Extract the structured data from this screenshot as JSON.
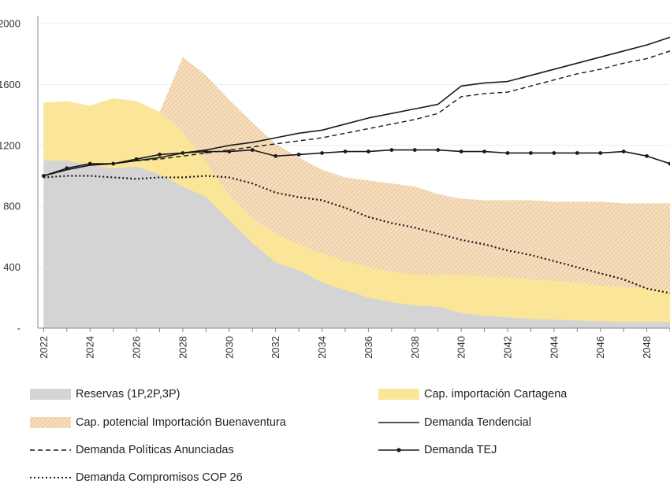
{
  "chart_data": {
    "type": "area",
    "title": "",
    "xlabel": "",
    "ylabel": "",
    "x": [
      2022,
      2023,
      2024,
      2025,
      2026,
      2027,
      2028,
      2029,
      2030,
      2031,
      2032,
      2033,
      2034,
      2035,
      2036,
      2037,
      2038,
      2039,
      2040,
      2041,
      2042,
      2043,
      2044,
      2045,
      2046,
      2047,
      2048,
      2049
    ],
    "x_ticks": [
      "2022",
      "2024",
      "2026",
      "2028",
      "2030",
      "2032",
      "2034",
      "2036",
      "2038",
      "2040",
      "2042",
      "2044",
      "2046",
      "2048"
    ],
    "y_ticks": [
      {
        "value": 0,
        "label": "-"
      },
      {
        "value": 400,
        "label": "400"
      },
      {
        "value": 800,
        "label": "800"
      },
      {
        "value": 1200,
        "label": "1200"
      },
      {
        "value": 1600,
        "label": "1600"
      },
      {
        "value": 2000,
        "label": "2000"
      }
    ],
    "ylim": [
      0,
      2000
    ],
    "xlim": [
      2021.75,
      2049
    ],
    "grid": "horizontal",
    "legend_placement": "bottom",
    "series": [
      {
        "name": "Reservas (1P,2P,3P)",
        "kind": "area",
        "color": "#d4d4d4",
        "values": [
          1100,
          1100,
          1070,
          1050,
          1060,
          1010,
          930,
          860,
          710,
          560,
          430,
          380,
          300,
          250,
          200,
          170,
          150,
          140,
          100,
          80,
          70,
          60,
          55,
          50,
          45,
          40,
          40,
          40
        ]
      },
      {
        "name": "Cap. importación Cartagena",
        "kind": "area",
        "color": "#fbe599",
        "values": [
          1480,
          1490,
          1460,
          1510,
          1490,
          1420,
          1290,
          1090,
          870,
          720,
          620,
          550,
          490,
          440,
          400,
          370,
          350,
          350,
          350,
          340,
          330,
          320,
          310,
          300,
          280,
          270,
          260,
          250
        ]
      },
      {
        "name": "Cap. potencial Importación Buenaventura",
        "kind": "area",
        "color": "#f2cf9c",
        "values": [
          1480,
          1490,
          1460,
          1510,
          1490,
          1420,
          1780,
          1660,
          1500,
          1350,
          1210,
          1120,
          1040,
          990,
          970,
          950,
          930,
          880,
          850,
          840,
          840,
          840,
          830,
          830,
          830,
          820,
          820,
          820
        ]
      },
      {
        "name": "Demanda Tendencial",
        "kind": "line",
        "style": "solid",
        "color": "#1a1a1a",
        "values": [
          1000,
          1040,
          1070,
          1080,
          1100,
          1120,
          1150,
          1170,
          1200,
          1220,
          1250,
          1280,
          1300,
          1340,
          1380,
          1410,
          1440,
          1470,
          1590,
          1610,
          1620,
          1660,
          1700,
          1740,
          1780,
          1820,
          1860,
          1910
        ]
      },
      {
        "name": "Demanda Políticas Anunciadas",
        "kind": "line",
        "style": "dashed",
        "color": "#1a1a1a",
        "values": [
          1000,
          1040,
          1070,
          1080,
          1100,
          1110,
          1130,
          1150,
          1170,
          1190,
          1210,
          1230,
          1250,
          1280,
          1310,
          1340,
          1370,
          1410,
          1520,
          1540,
          1550,
          1590,
          1630,
          1670,
          1700,
          1740,
          1770,
          1820
        ]
      },
      {
        "name": "Demanda TEJ",
        "kind": "line",
        "style": "solid-markers",
        "color": "#1a1a1a",
        "values": [
          1000,
          1050,
          1080,
          1080,
          1110,
          1140,
          1150,
          1160,
          1160,
          1170,
          1130,
          1140,
          1150,
          1160,
          1160,
          1170,
          1170,
          1170,
          1160,
          1160,
          1150,
          1150,
          1150,
          1150,
          1150,
          1160,
          1130,
          1080
        ]
      },
      {
        "name": "Demanda Compromisos COP 26",
        "kind": "line",
        "style": "dotted",
        "color": "#1a1a1a",
        "values": [
          990,
          1000,
          1000,
          990,
          980,
          990,
          990,
          1000,
          990,
          950,
          890,
          860,
          840,
          790,
          730,
          690,
          660,
          620,
          580,
          550,
          510,
          480,
          440,
          400,
          360,
          320,
          260,
          230
        ]
      }
    ]
  }
}
